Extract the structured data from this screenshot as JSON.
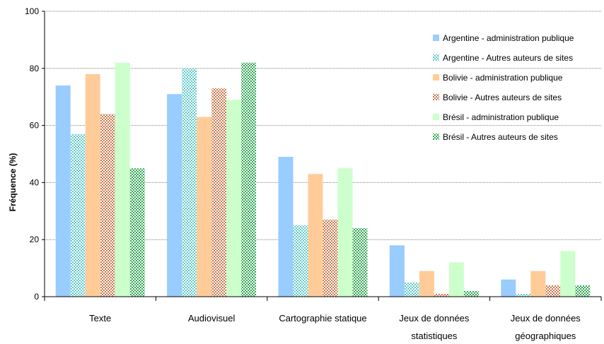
{
  "chart_data": {
    "type": "bar",
    "ylabel": "Fréquence (%)",
    "ylim": [
      0,
      100
    ],
    "yticks": [
      0,
      20,
      40,
      60,
      80,
      100
    ],
    "categories": [
      [
        "Texte"
      ],
      [
        "Audiovisuel"
      ],
      [
        "Cartographie statique"
      ],
      [
        "Jeux de données",
        "statistiques"
      ],
      [
        "Jeux de données",
        "géographiques"
      ]
    ],
    "legend_position": "top-right",
    "series": [
      {
        "name": "Argentine - administration publique",
        "color": "#99ccff",
        "pattern": "solid",
        "values": [
          74,
          71,
          49,
          18,
          6
        ]
      },
      {
        "name": "Argentine - Autres auteurs de sites",
        "color": "#66cccc",
        "pattern": "dotted",
        "values": [
          57,
          80,
          25,
          5,
          1
        ]
      },
      {
        "name": "Bolivie  - administration publique",
        "color": "#ffcc99",
        "pattern": "solid",
        "values": [
          78,
          63,
          43,
          9,
          9
        ]
      },
      {
        "name": "Bolivie - Autres auteurs de sites",
        "color": "#cc7a50",
        "pattern": "dotted",
        "values": [
          64,
          73,
          27,
          1,
          4
        ]
      },
      {
        "name": "Brésil  - administration publique",
        "color": "#ccffcc",
        "pattern": "solid",
        "values": [
          82,
          69,
          45,
          12,
          16
        ]
      },
      {
        "name": "Brésil - Autres auteurs de sites",
        "color": "#33aa55",
        "pattern": "dotted",
        "values": [
          45,
          82,
          24,
          2,
          4
        ]
      }
    ]
  }
}
